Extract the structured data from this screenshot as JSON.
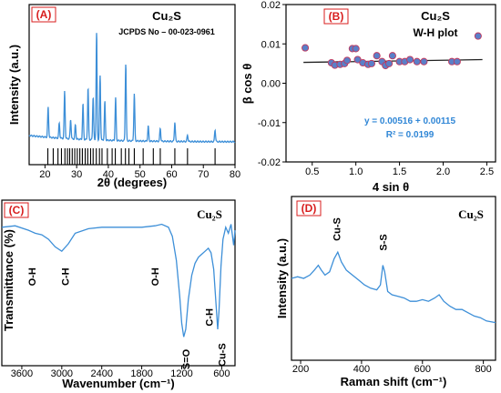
{
  "colors": {
    "series": "#3d8fd8",
    "marker": "#5a7fc8",
    "marker_edge": "#c2395e",
    "fit": "#222222",
    "panel_label": "#d81e1e",
    "equation": "#2f86d6"
  },
  "chart_data": [
    {
      "panel": "(A)",
      "type": "line",
      "compound": "Cu₂S",
      "reference": "JCPDS No – 00-023-0961",
      "xlabel": "2θ (degrees)",
      "ylabel": "Intensity (a.u.)",
      "xlim": [
        15,
        80
      ],
      "xticks": [
        20,
        30,
        40,
        50,
        60,
        70,
        80
      ],
      "peaks": [
        {
          "x": 21.0,
          "h": 0.28
        },
        {
          "x": 24.5,
          "h": 0.14
        },
        {
          "x": 26.2,
          "h": 0.44
        },
        {
          "x": 28.1,
          "h": 0.18
        },
        {
          "x": 29.6,
          "h": 0.13
        },
        {
          "x": 32.0,
          "h": 0.33
        },
        {
          "x": 33.6,
          "h": 0.48
        },
        {
          "x": 35.2,
          "h": 0.4
        },
        {
          "x": 36.3,
          "h": 1.0
        },
        {
          "x": 37.4,
          "h": 0.6
        },
        {
          "x": 38.9,
          "h": 0.36
        },
        {
          "x": 42.3,
          "h": 0.4
        },
        {
          "x": 45.5,
          "h": 0.72
        },
        {
          "x": 48.2,
          "h": 0.44
        },
        {
          "x": 52.6,
          "h": 0.14
        },
        {
          "x": 56.4,
          "h": 0.12
        },
        {
          "x": 61.0,
          "h": 0.18
        },
        {
          "x": 65.0,
          "h": 0.06
        },
        {
          "x": 73.7,
          "h": 0.11
        }
      ],
      "reference_lines": [
        20.9,
        22.6,
        24.1,
        25.2,
        26.3,
        27.1,
        27.8,
        28.6,
        29.4,
        30.2,
        31.0,
        31.8,
        32.7,
        33.5,
        34.4,
        35.2,
        36.2,
        37.2,
        38.0,
        39.7,
        41.2,
        42.2,
        44.1,
        45.4,
        46.5,
        48.2,
        51.0,
        54.2,
        56.4,
        61.0,
        65.0,
        73.7
      ]
    },
    {
      "panel": "(B)",
      "type": "scatter",
      "compound": "Cu₂S",
      "subtitle": "W-H plot",
      "xlabel": "4 sin θ",
      "ylabel": "β cos θ",
      "xlim": [
        0.2,
        2.6
      ],
      "ylim": [
        -0.02,
        0.02
      ],
      "xticks": [
        0.5,
        1.0,
        1.5,
        2.0,
        2.5
      ],
      "yticks": [
        -0.02,
        -0.01,
        0.0,
        0.01,
        0.02
      ],
      "ytick_labels": [
        "-0.02",
        "-0.01",
        "0.00",
        "0.01",
        "0.02"
      ],
      "xtick_labels": [
        "0.5",
        "1.0",
        "1.5",
        "2.0",
        "2.5"
      ],
      "points": [
        [
          0.42,
          0.009
        ],
        [
          0.72,
          0.0052
        ],
        [
          0.76,
          0.0046
        ],
        [
          0.82,
          0.0048
        ],
        [
          0.87,
          0.005
        ],
        [
          0.9,
          0.0058
        ],
        [
          0.96,
          0.0088
        ],
        [
          1.0,
          0.0088
        ],
        [
          1.02,
          0.006
        ],
        [
          1.08,
          0.0052
        ],
        [
          1.14,
          0.0048
        ],
        [
          1.18,
          0.005
        ],
        [
          1.24,
          0.007
        ],
        [
          1.3,
          0.0055
        ],
        [
          1.34,
          0.0045
        ],
        [
          1.38,
          0.005
        ],
        [
          1.42,
          0.007
        ],
        [
          1.5,
          0.0055
        ],
        [
          1.56,
          0.0055
        ],
        [
          1.62,
          0.006
        ],
        [
          1.7,
          0.0055
        ],
        [
          1.78,
          0.0055
        ],
        [
          2.1,
          0.0055
        ],
        [
          2.16,
          0.0055
        ],
        [
          2.4,
          0.012
        ]
      ],
      "fit": {
        "slope": 0.00115,
        "intercept": 0.00516
      },
      "equation": "y = 0.00516  + 0.00115",
      "r2": "R² = 0.0199"
    },
    {
      "panel": "(C)",
      "type": "line",
      "compound": "Cu₂S",
      "xlabel": "Wavenumber (cm⁻¹)",
      "ylabel": "Transmittance (%)",
      "xlim": [
        3900,
        400
      ],
      "xticks": [
        3600,
        3000,
        2400,
        1800,
        1200,
        600
      ],
      "spectrum": [
        [
          3900,
          0.88
        ],
        [
          3700,
          0.89
        ],
        [
          3500,
          0.86
        ],
        [
          3400,
          0.84
        ],
        [
          3300,
          0.83
        ],
        [
          3200,
          0.8
        ],
        [
          3100,
          0.75
        ],
        [
          3000,
          0.72
        ],
        [
          2900,
          0.77
        ],
        [
          2800,
          0.84
        ],
        [
          2600,
          0.87
        ],
        [
          2400,
          0.88
        ],
        [
          2200,
          0.88
        ],
        [
          2000,
          0.88
        ],
        [
          1800,
          0.88
        ],
        [
          1600,
          0.89
        ],
        [
          1500,
          0.9
        ],
        [
          1400,
          0.88
        ],
        [
          1340,
          0.82
        ],
        [
          1280,
          0.66
        ],
        [
          1230,
          0.42
        ],
        [
          1200,
          0.24
        ],
        [
          1170,
          0.15
        ],
        [
          1140,
          0.2
        ],
        [
          1100,
          0.4
        ],
        [
          1050,
          0.56
        ],
        [
          1000,
          0.64
        ],
        [
          950,
          0.68
        ],
        [
          900,
          0.7
        ],
        [
          850,
          0.72
        ],
        [
          800,
          0.74
        ],
        [
          760,
          0.71
        ],
        [
          720,
          0.6
        ],
        [
          690,
          0.4
        ],
        [
          660,
          0.2
        ],
        [
          640,
          0.32
        ],
        [
          610,
          0.62
        ],
        [
          580,
          0.8
        ],
        [
          540,
          0.88
        ],
        [
          500,
          0.84
        ],
        [
          460,
          0.9
        ],
        [
          420,
          0.76
        ],
        [
          400,
          0.86
        ]
      ],
      "annotations": [
        {
          "label": "O-H",
          "x": 3450,
          "y": 0.55
        },
        {
          "label": "C-H",
          "x": 2950,
          "y": 0.55
        },
        {
          "label": "O-H",
          "x": 1600,
          "y": 0.55
        },
        {
          "label": "S=O",
          "x": 1140,
          "y": 0.0
        },
        {
          "label": "C-H",
          "x": 790,
          "y": 0.28
        },
        {
          "label": "Cu-S",
          "x": 600,
          "y": 0.03
        }
      ]
    },
    {
      "panel": "(D)",
      "type": "line",
      "compound": "Cu₂S",
      "xlabel": "Raman shift (cm⁻¹)",
      "ylabel": "Intensity (a.u.)",
      "xlim": [
        170,
        840
      ],
      "xticks": [
        200,
        400,
        600,
        800
      ],
      "spectrum": [
        [
          170,
          0.5
        ],
        [
          190,
          0.51
        ],
        [
          210,
          0.5
        ],
        [
          230,
          0.52
        ],
        [
          245,
          0.55
        ],
        [
          258,
          0.58
        ],
        [
          268,
          0.55
        ],
        [
          280,
          0.52
        ],
        [
          295,
          0.54
        ],
        [
          310,
          0.62
        ],
        [
          322,
          0.66
        ],
        [
          334,
          0.6
        ],
        [
          350,
          0.55
        ],
        [
          370,
          0.52
        ],
        [
          390,
          0.49
        ],
        [
          410,
          0.46
        ],
        [
          430,
          0.44
        ],
        [
          450,
          0.43
        ],
        [
          462,
          0.46
        ],
        [
          470,
          0.58
        ],
        [
          476,
          0.54
        ],
        [
          486,
          0.42
        ],
        [
          500,
          0.4
        ],
        [
          520,
          0.39
        ],
        [
          540,
          0.38
        ],
        [
          560,
          0.36
        ],
        [
          580,
          0.36
        ],
        [
          600,
          0.37
        ],
        [
          620,
          0.36
        ],
        [
          640,
          0.38
        ],
        [
          655,
          0.4
        ],
        [
          670,
          0.36
        ],
        [
          690,
          0.33
        ],
        [
          710,
          0.31
        ],
        [
          730,
          0.31
        ],
        [
          750,
          0.29
        ],
        [
          770,
          0.27
        ],
        [
          790,
          0.26
        ],
        [
          810,
          0.24
        ],
        [
          840,
          0.23
        ]
      ],
      "annotations": [
        {
          "label": "Cu-S",
          "x": 318,
          "y": 0.7
        },
        {
          "label": "S-S",
          "x": 470,
          "y": 0.62
        }
      ]
    }
  ]
}
